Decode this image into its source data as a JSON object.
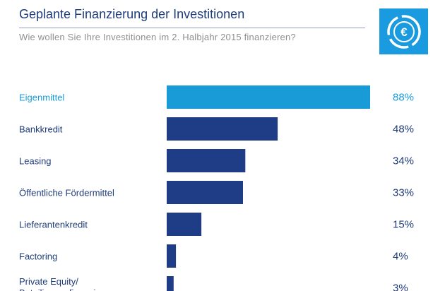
{
  "header": {
    "title": "Geplante Finanzierung der Investitionen",
    "subtitle": "Wie wollen Sie Ihre Investitionen im 2. Halbjahr 2015 finanzieren?"
  },
  "logo": {
    "icon": "euro-circle-icon",
    "glyph": "€"
  },
  "colors": {
    "highlight": "#199bd8",
    "bar": "#1f3c86",
    "title": "#1f3c7a",
    "subtitle": "#8f8f8f",
    "logo_bg": "#1a9be0"
  },
  "chart_data": {
    "type": "bar",
    "orientation": "horizontal",
    "categories": [
      "Eigenmittel",
      "Bankkredit",
      "Leasing",
      "Öffentliche Fördermittel",
      "Lieferantenkredit",
      "Factoring",
      "Private Equity/ Beteiligungsfinanzierung"
    ],
    "values": [
      88,
      48,
      34,
      33,
      15,
      4,
      3
    ],
    "value_labels": [
      "88%",
      "48%",
      "34%",
      "33%",
      "15%",
      "4%",
      "3%"
    ],
    "highlight_index": 0,
    "xlim": [
      0,
      88
    ],
    "unit": "%",
    "grid": false,
    "legend": "none"
  }
}
